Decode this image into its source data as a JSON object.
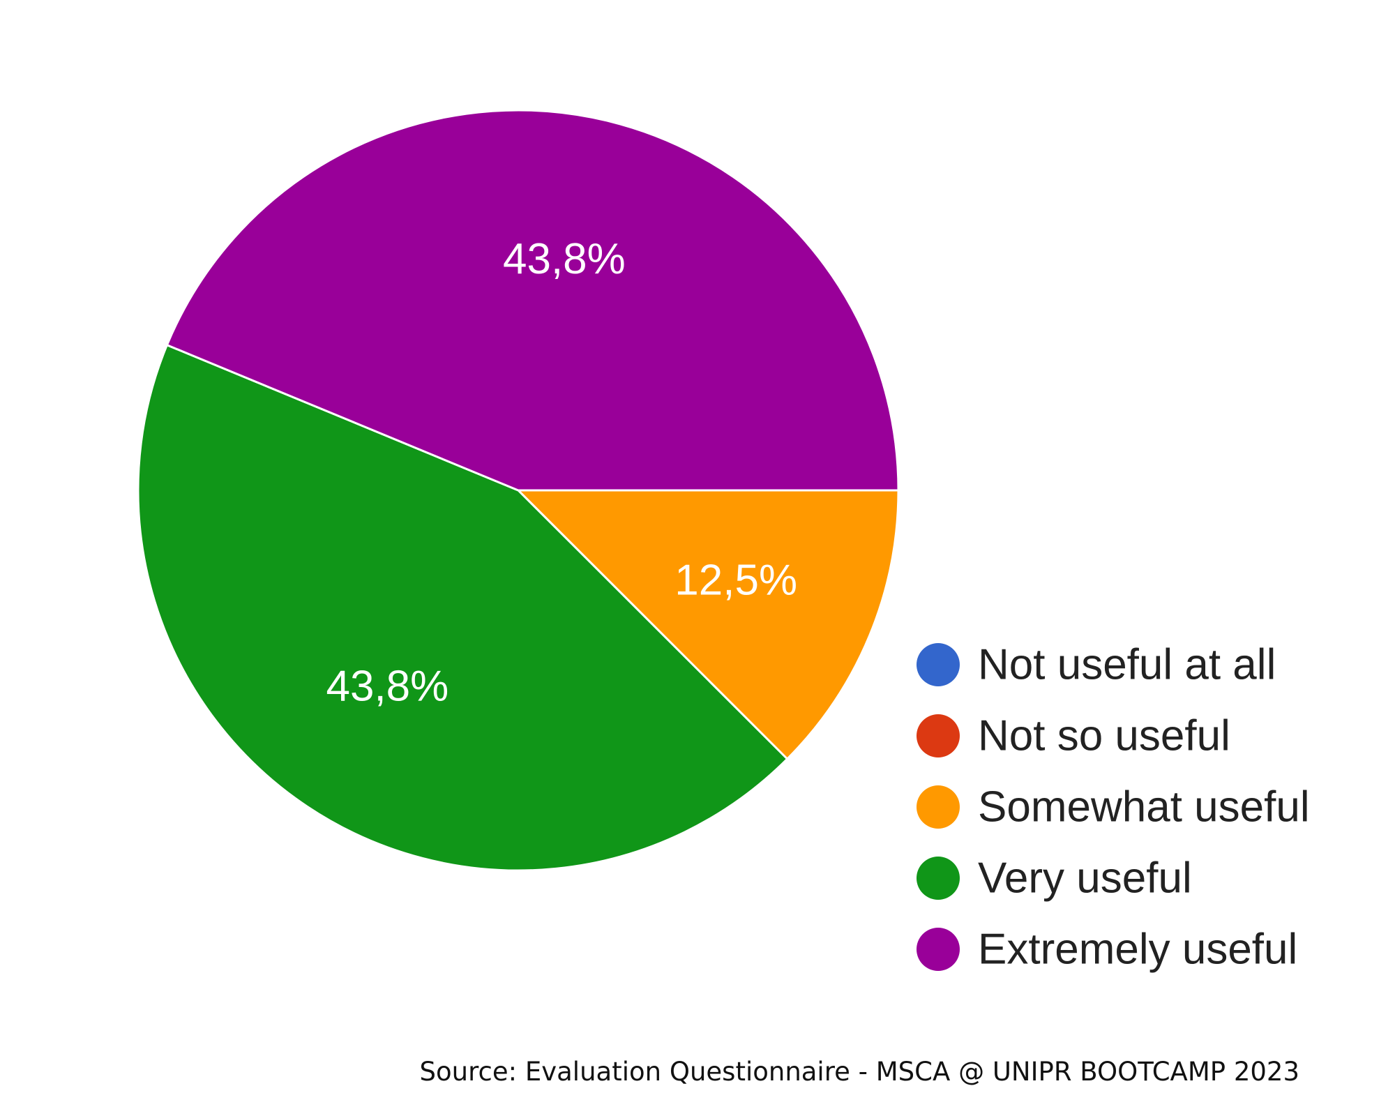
{
  "chart_data": {
    "type": "pie",
    "categories": [
      "Not useful at all",
      "Not so useful",
      "Somewhat useful",
      "Very useful",
      "Extremely useful"
    ],
    "values": [
      0,
      0,
      12.5,
      43.8,
      43.8
    ],
    "data_labels": [
      "",
      "",
      "12,5%",
      "43,8%",
      "43,8%"
    ],
    "colors": [
      "#3366cc",
      "#dc3912",
      "#ff9900",
      "#109618",
      "#990099"
    ],
    "legend_position": "right-bottom",
    "start_angle_deg": 90,
    "direction": "clockwise"
  },
  "source": "Source: Evaluation Questionnaire - MSCA @ UNIPR BOOTCAMP 2023"
}
